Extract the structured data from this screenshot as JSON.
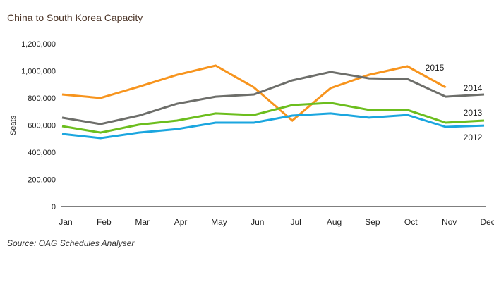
{
  "chart_data": {
    "type": "line",
    "title": "China to South Korea Capacity",
    "xlabel": "",
    "ylabel": "Seats",
    "ylim": [
      0,
      1200000
    ],
    "yticks": [
      0,
      200000,
      400000,
      600000,
      800000,
      1000000,
      1200000
    ],
    "ytick_labels": [
      "0",
      "200,000",
      "400,000",
      "600,000",
      "800,000",
      "1,000,000",
      "1,200,000"
    ],
    "categories": [
      "Jan",
      "Feb",
      "Mar",
      "Apr",
      "May",
      "Jun",
      "Jul",
      "Aug",
      "Sep",
      "Oct",
      "Nov",
      "Dec"
    ],
    "grid": false,
    "legend": "inline-right",
    "series": [
      {
        "name": "2015",
        "color": "#F7941D",
        "values": [
          826000,
          800000,
          883000,
          971000,
          1039000,
          878000,
          634000,
          873000,
          971000,
          1034000,
          878000,
          null
        ]
      },
      {
        "name": "2014",
        "color": "#6D6E6A",
        "values": [
          655000,
          608000,
          670000,
          758000,
          810000,
          826000,
          930000,
          992000,
          945000,
          940000,
          810000,
          826000
        ]
      },
      {
        "name": "2013",
        "color": "#6CBE1E",
        "values": [
          592000,
          545000,
          603000,
          634000,
          686000,
          675000,
          748000,
          764000,
          712000,
          712000,
          618000,
          634000
        ]
      },
      {
        "name": "2012",
        "color": "#1BA6DF",
        "values": [
          535000,
          504000,
          545000,
          571000,
          618000,
          618000,
          670000,
          686000,
          655000,
          675000,
          587000,
          597000
        ]
      }
    ],
    "source": "Source: OAG Schedules Analyser"
  }
}
